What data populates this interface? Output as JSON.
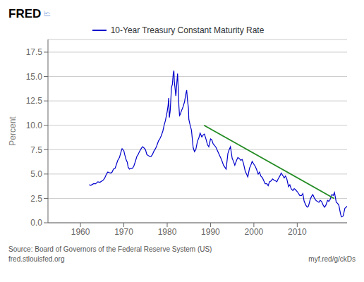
{
  "chart_data": {
    "type": "line",
    "ylabel": "Percent",
    "legend": "top",
    "grid": true,
    "xlim": [
      1952.5,
      2021.5
    ],
    "xticks": [
      1960,
      1970,
      1980,
      1990,
      2000,
      2010
    ],
    "ylim": [
      0.0,
      18.8
    ],
    "yticks": [
      {
        "value": 0.0,
        "label": "0.0"
      },
      2.5,
      {
        "value": 5.0,
        "label": "5.0"
      },
      7.5,
      {
        "value": 10.0,
        "label": "10.0"
      },
      12.5,
      {
        "value": 15.0,
        "label": "15.0"
      },
      17.5
    ],
    "annotations": [
      "FRED",
      "🗠",
      "Source: Board of Governors of the Federal Reserve System (US)",
      "fred.stlouisfed.org",
      "myf.red/g/ckDs"
    ],
    "series": [
      {
        "name": "10-Year Treasury Constant Maturity Rate",
        "color": "#0000cc",
        "x": [
          1962.0,
          1962.4,
          1962.8,
          1963.0,
          1963.5,
          1964.0,
          1964.5,
          1965.0,
          1965.3,
          1965.6,
          1966.0,
          1966.3,
          1966.6,
          1967.0,
          1967.3,
          1967.6,
          1968.0,
          1968.3,
          1968.6,
          1969.0,
          1969.3,
          1969.6,
          1970.0,
          1970.2,
          1970.5,
          1970.8,
          1971.0,
          1971.3,
          1971.6,
          1972.0,
          1972.3,
          1972.6,
          1973.0,
          1973.3,
          1973.6,
          1974.0,
          1974.3,
          1974.6,
          1975.0,
          1975.3,
          1975.6,
          1976.0,
          1976.3,
          1976.6,
          1977.0,
          1977.3,
          1977.6,
          1978.0,
          1978.3,
          1978.6,
          1979.0,
          1979.3,
          1979.6,
          1980.0,
          1980.2,
          1980.35,
          1980.5,
          1980.7,
          1981.0,
          1981.2,
          1981.4,
          1981.55,
          1981.65,
          1982.0,
          1982.25,
          1982.4,
          1982.55,
          1982.7,
          1982.85,
          1983.0,
          1983.3,
          1983.6,
          1984.0,
          1984.3,
          1984.5,
          1984.7,
          1984.9,
          1985.0,
          1985.3,
          1985.6,
          1986.0,
          1986.3,
          1986.6,
          1987.0,
          1987.3,
          1987.6,
          1988.0,
          1988.3,
          1988.6,
          1989.0,
          1989.3,
          1989.6,
          1990.0,
          1990.3,
          1990.6,
          1991.0,
          1991.3,
          1991.6,
          1992.0,
          1992.3,
          1992.6,
          1993.0,
          1993.3,
          1993.6,
          1994.0,
          1994.3,
          1994.6,
          1995.0,
          1995.3,
          1995.6,
          1996.0,
          1996.3,
          1996.6,
          1997.0,
          1997.3,
          1997.6,
          1998.0,
          1998.3,
          1998.6,
          1999.0,
          1999.3,
          1999.6,
          2000.0,
          2000.3,
          2000.6,
          2001.0,
          2001.3,
          2001.6,
          2002.0,
          2002.3,
          2002.6,
          2003.0,
          2003.3,
          2003.6,
          2004.0,
          2004.3,
          2004.6,
          2005.0,
          2005.3,
          2005.6,
          2006.0,
          2006.3,
          2006.6,
          2007.0,
          2007.3,
          2007.6,
          2008.0,
          2008.3,
          2008.6,
          2009.0,
          2009.3,
          2009.6,
          2010.0,
          2010.3,
          2010.6,
          2011.0,
          2011.3,
          2011.6,
          2012.0,
          2012.3,
          2012.6,
          2013.0,
          2013.3,
          2013.6,
          2014.0,
          2014.3,
          2014.6,
          2015.0,
          2015.3,
          2015.6,
          2016.0,
          2016.3,
          2016.6,
          2017.0,
          2017.3,
          2017.6,
          2018.0,
          2018.3,
          2018.6,
          2019.0,
          2019.3,
          2019.6,
          2020.0,
          2020.2,
          2020.4,
          2020.6,
          2021.0,
          2021.3,
          2021.5
        ],
        "values": [
          3.9,
          3.85,
          3.95,
          4.0,
          4.0,
          4.2,
          4.15,
          4.3,
          4.4,
          4.6,
          5.0,
          5.2,
          5.15,
          5.1,
          5.2,
          5.5,
          5.6,
          6.0,
          6.4,
          6.7,
          7.2,
          7.6,
          7.4,
          7.0,
          6.5,
          6.2,
          5.7,
          5.5,
          5.6,
          5.6,
          5.8,
          6.2,
          6.8,
          7.0,
          7.3,
          7.6,
          7.8,
          7.7,
          7.5,
          7.0,
          6.9,
          6.8,
          6.8,
          7.0,
          7.4,
          7.6,
          7.9,
          8.4,
          8.6,
          8.9,
          9.4,
          10.0,
          10.5,
          11.4,
          12.0,
          12.8,
          10.8,
          11.5,
          13.9,
          14.2,
          15.3,
          15.6,
          14.5,
          13.0,
          14.5,
          15.3,
          13.8,
          12.0,
          11.0,
          11.1,
          11.5,
          11.8,
          12.4,
          13.2,
          13.6,
          12.5,
          11.8,
          10.6,
          10.0,
          9.5,
          7.7,
          7.3,
          7.5,
          8.4,
          8.7,
          9.2,
          8.8,
          9.0,
          9.1,
          8.5,
          8.0,
          7.8,
          8.6,
          8.5,
          8.1,
          7.9,
          7.7,
          7.4,
          7.0,
          6.7,
          6.4,
          5.9,
          5.7,
          5.5,
          7.1,
          7.5,
          7.8,
          6.6,
          6.3,
          5.9,
          6.4,
          6.7,
          6.6,
          6.4,
          6.5,
          6.1,
          5.3,
          5.0,
          4.7,
          5.6,
          5.9,
          6.3,
          6.0,
          5.8,
          5.5,
          5.0,
          5.2,
          4.8,
          4.6,
          4.3,
          4.0,
          4.0,
          3.8,
          4.2,
          4.3,
          4.5,
          4.4,
          4.3,
          4.2,
          4.5,
          4.8,
          5.1,
          4.9,
          4.6,
          4.8,
          4.5,
          3.7,
          3.9,
          3.5,
          3.3,
          3.5,
          3.4,
          3.2,
          3.0,
          2.8,
          2.8,
          3.0,
          2.2,
          1.8,
          1.6,
          1.7,
          2.4,
          2.7,
          2.9,
          2.5,
          2.3,
          2.2,
          2.1,
          2.3,
          2.2,
          1.8,
          1.6,
          1.8,
          2.3,
          2.2,
          2.4,
          2.9,
          2.8,
          3.1,
          2.1,
          2.0,
          1.8,
          0.9,
          0.6,
          0.65,
          0.7,
          1.5,
          1.6,
          1.7
        ]
      },
      {
        "color": "#228B22",
        "x": [
          1988.5,
          2018.5
        ],
        "values": [
          10.0,
          2.5
        ]
      }
    ]
  }
}
